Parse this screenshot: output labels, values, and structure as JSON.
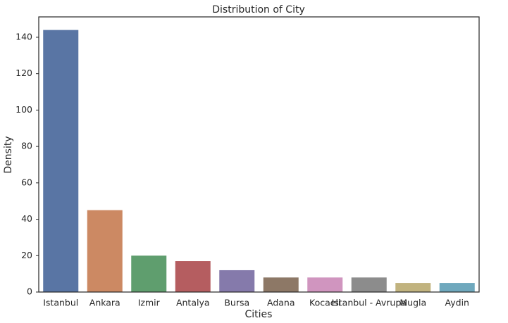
{
  "chart_data": {
    "type": "bar",
    "title": "Distribution of City",
    "x_label": "Cities",
    "y_label": "Density",
    "categories": [
      "Istanbul",
      "Ankara",
      "Izmir",
      "Antalya",
      "Bursa",
      "Adana",
      "Kocaeli",
      "Istanbul - Avrupa",
      "Mugla",
      "Aydin"
    ],
    "values": [
      144,
      45,
      20,
      17,
      12,
      8,
      8,
      8,
      5,
      5
    ],
    "colors": [
      "#5975a4",
      "#cc8963",
      "#5f9e6e",
      "#b55d60",
      "#857aab",
      "#8d7866",
      "#d095bf",
      "#8c8c8c",
      "#c1b37f",
      "#6fa8bd"
    ],
    "ylim": [
      0,
      151.2
    ],
    "yticks": [
      0,
      20,
      40,
      60,
      80,
      100,
      120,
      140
    ],
    "grid": false
  }
}
